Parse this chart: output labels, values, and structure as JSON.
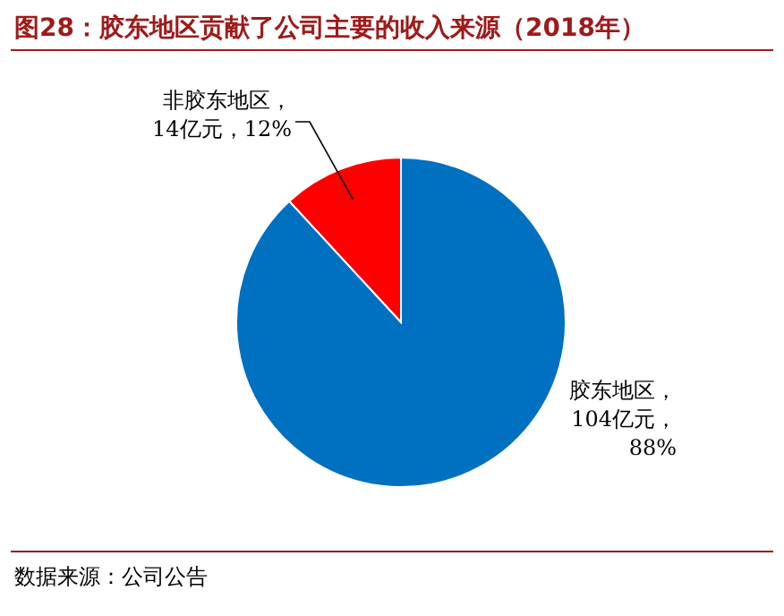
{
  "chart_data": {
    "type": "pie",
    "title": "图28：胶东地区贡献了公司主要的收入来源（2018年）",
    "categories": [
      "非胶东地区",
      "胶东地区"
    ],
    "values": [
      14,
      104
    ],
    "value_labels": [
      "，\n14亿元，12%",
      "，\n104亿元，\n88%"
    ],
    "colors": [
      "#ff0000",
      "#0070c0"
    ],
    "annotations": [
      "数据来源：公司公告"
    ]
  }
}
